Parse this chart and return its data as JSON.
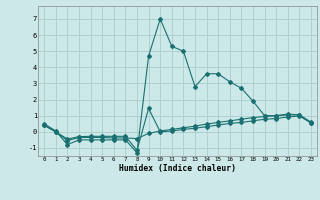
{
  "xlabel": "Humidex (Indice chaleur)",
  "background_color": "#cce8e8",
  "grid_color": "#aacccc",
  "line_color": "#1a7070",
  "xlim": [
    -0.5,
    23.5
  ],
  "ylim": [
    -1.5,
    7.8
  ],
  "yticks": [
    -1,
    0,
    1,
    2,
    3,
    4,
    5,
    6,
    7
  ],
  "xticks": [
    0,
    1,
    2,
    3,
    4,
    5,
    6,
    7,
    8,
    9,
    10,
    11,
    12,
    13,
    14,
    15,
    16,
    17,
    18,
    19,
    20,
    21,
    22,
    23
  ],
  "line1_x": [
    0,
    1,
    2,
    3,
    4,
    5,
    6,
    7,
    8,
    9,
    10,
    11,
    12,
    13,
    14,
    15,
    16,
    17,
    18,
    19,
    20,
    21,
    22,
    23
  ],
  "line1_y": [
    0.5,
    0.05,
    -0.8,
    -0.5,
    -0.5,
    -0.5,
    -0.5,
    -0.5,
    -1.3,
    4.7,
    7.0,
    5.3,
    5.0,
    2.8,
    3.6,
    3.6,
    3.1,
    2.7,
    1.9,
    1.0,
    1.0,
    1.1,
    1.05,
    0.6
  ],
  "line2_x": [
    0,
    1,
    2,
    3,
    4,
    5,
    6,
    7,
    8,
    9,
    10,
    11,
    12,
    13,
    14,
    15,
    16,
    17,
    18,
    19,
    20,
    21,
    22,
    23
  ],
  "line2_y": [
    0.4,
    0.0,
    -0.55,
    -0.35,
    -0.35,
    -0.35,
    -0.38,
    -0.38,
    -0.42,
    -0.1,
    0.05,
    0.15,
    0.25,
    0.35,
    0.48,
    0.58,
    0.68,
    0.78,
    0.88,
    0.95,
    1.0,
    1.05,
    1.05,
    0.55
  ],
  "line3_x": [
    0,
    1,
    2,
    3,
    4,
    5,
    6,
    7,
    8,
    9,
    10,
    11,
    12,
    13,
    14,
    15,
    16,
    17,
    18,
    19,
    20,
    21,
    22,
    23
  ],
  "line3_y": [
    0.4,
    0.0,
    -0.45,
    -0.3,
    -0.28,
    -0.28,
    -0.28,
    -0.28,
    -1.15,
    1.45,
    0.0,
    0.05,
    0.15,
    0.22,
    0.32,
    0.42,
    0.52,
    0.58,
    0.68,
    0.78,
    0.82,
    0.92,
    0.98,
    0.55
  ]
}
